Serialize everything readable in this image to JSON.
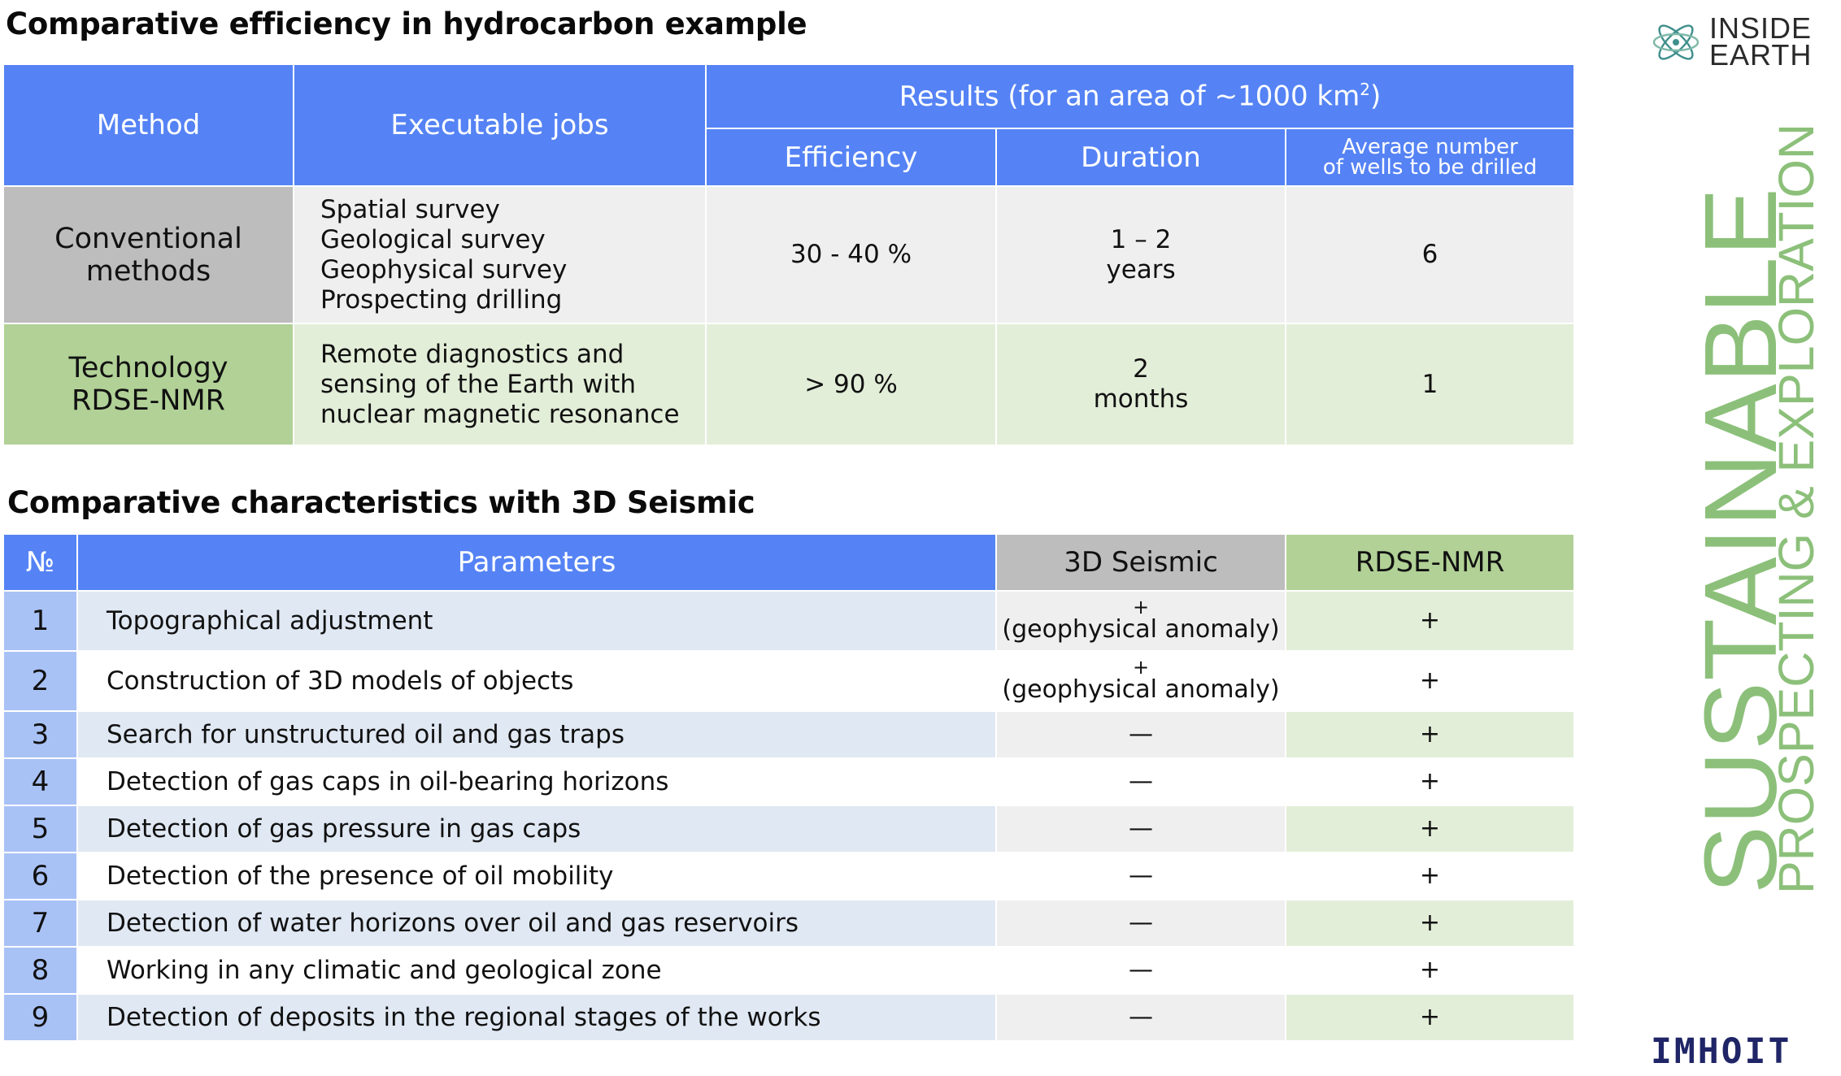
{
  "section1": {
    "title": "Comparative efficiency in hydrocarbon example",
    "headers": {
      "method": "Method",
      "jobs": "Executable jobs",
      "results_bold": "Results",
      "results_rest": "(for an area of ~1000 km",
      "results_sup": "2",
      "results_end": ")",
      "efficiency": "Efficiency",
      "duration": "Duration",
      "wells_line1": "Average number",
      "wells_line2": "of wells to be drilled"
    },
    "rows": [
      {
        "method_line1": "Conventional",
        "method_line2": "methods",
        "jobs": [
          "Spatial survey",
          "Geological survey",
          "Geophysical survey",
          "Prospecting drilling"
        ],
        "efficiency": "30 - 40 %",
        "duration_line1": "1 – 2",
        "duration_line2": "years",
        "wells": "6"
      },
      {
        "method_line1": "Technology",
        "method_line2": "RDSE-NMR",
        "jobs": [
          "Remote diagnostics and",
          "sensing of the Earth with",
          "nuclear magnetic resonance"
        ],
        "efficiency": "> 90 %",
        "duration_line1": "2",
        "duration_line2": "months",
        "wells": "1"
      }
    ]
  },
  "section2": {
    "title": "Comparative characteristics with 3D Seismic",
    "headers": {
      "num": "№",
      "params": "Parameters",
      "seismic": "3D Seismic",
      "rdse": "RDSE-NMR"
    },
    "anomaly_plus": "+",
    "anomaly_text": "(geophysical anomaly)",
    "rows": [
      {
        "num": "1",
        "param": "Topographical adjustment",
        "seismic": "+ (geophysical anomaly)",
        "rdse": "+"
      },
      {
        "num": "2",
        "param": "Construction of 3D models of objects",
        "seismic": "+ (geophysical anomaly)",
        "rdse": "+"
      },
      {
        "num": "3",
        "param": "Search for unstructured oil and gas traps",
        "seismic": "—",
        "rdse": "+"
      },
      {
        "num": "4",
        "param": "Detection of gas caps in oil-bearing horizons",
        "seismic": "—",
        "rdse": "+"
      },
      {
        "num": "5",
        "param": "Detection of gas pressure in gas caps",
        "seismic": "—",
        "rdse": "+"
      },
      {
        "num": "6",
        "param": "Detection of the presence of oil mobility",
        "seismic": "—",
        "rdse": "+"
      },
      {
        "num": "7",
        "param": "Detection of water horizons over oil and gas reservoirs",
        "seismic": "—",
        "rdse": "+"
      },
      {
        "num": "8",
        "param": "Working in any climatic and geological zone",
        "seismic": "—",
        "rdse": "+"
      },
      {
        "num": "9",
        "param": "Detection of deposits in the regional stages of the works",
        "seismic": "—",
        "rdse": "+"
      }
    ]
  },
  "branding": {
    "logo_line1": "INSIDE",
    "logo_line2": "EARTH",
    "side_big": "SUSTAINABLE",
    "side_small": "PROSPECTING & EXPLORATION",
    "footer": "IMHOIT",
    "accent": "#8cc07a",
    "logo_icon": "atom-icon",
    "header_blue": "#5583f5"
  }
}
